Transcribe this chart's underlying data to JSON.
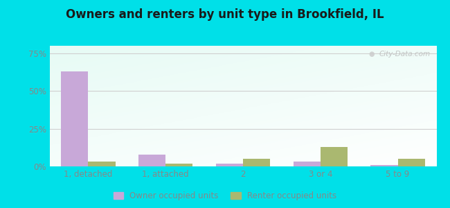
{
  "categories": [
    "1, detached",
    "1, attached",
    "2",
    "3 or 4",
    "5 to 9"
  ],
  "owner_values": [
    63,
    8,
    2,
    3,
    1
  ],
  "renter_values": [
    3,
    2,
    5,
    13,
    5
  ],
  "owner_color": "#c8a8d8",
  "renter_color": "#aab870",
  "title": "Owners and renters by unit type in Brookfield, IL",
  "title_fontsize": 12,
  "legend_labels": [
    "Owner occupied units",
    "Renter occupied units"
  ],
  "yticks": [
    0,
    25,
    50,
    75
  ],
  "ylim": [
    0,
    80
  ],
  "bar_width": 0.35,
  "outer_bg": "#00e0e8",
  "watermark": "City-Data.com",
  "axis_label_color": "#888888",
  "grid_color": "#d0d0d0"
}
